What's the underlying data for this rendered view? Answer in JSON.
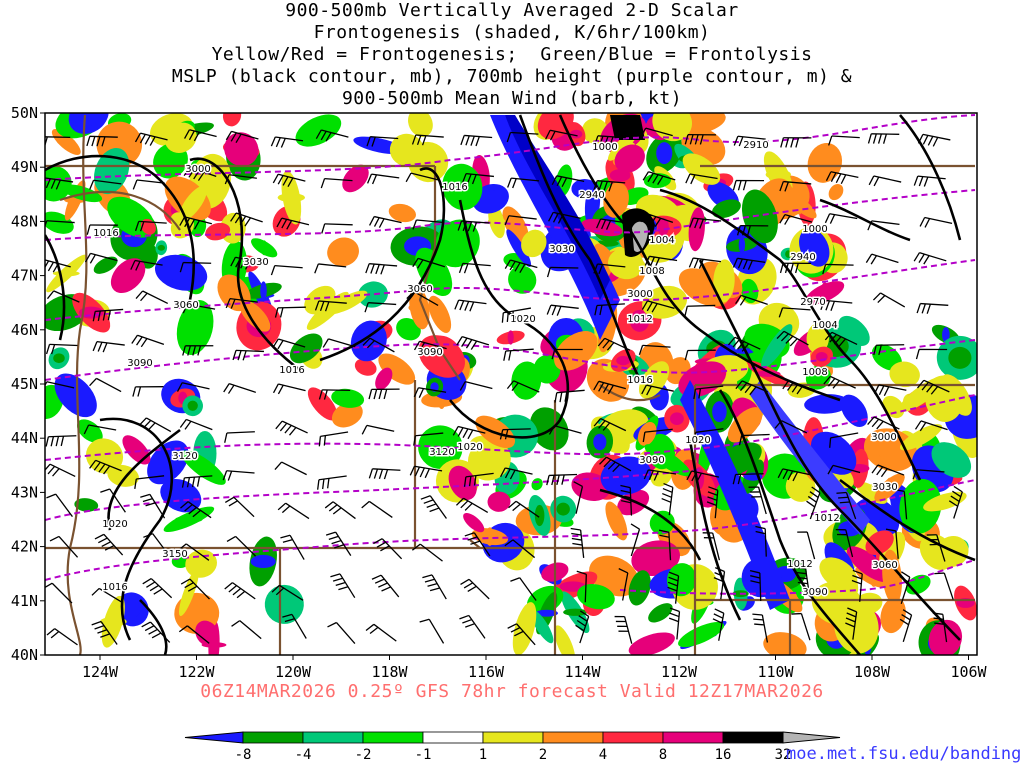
{
  "title": {
    "lines": [
      "900-500mb Vertically Averaged 2-D Scalar",
      "Frontogenesis (shaded, K/6hr/100km)",
      "Yellow/Red = Frontogenesis;  Green/Blue = Frontolysis",
      "MSLP (black contour, mb), 700mb height (purple contour, m) &",
      "900-500mb Mean Wind (barb, kt)"
    ]
  },
  "axes": {
    "lat_labels": [
      "50N",
      "49N",
      "48N",
      "47N",
      "46N",
      "45N",
      "44N",
      "43N",
      "42N",
      "41N",
      "40N"
    ],
    "lon_labels": [
      "124W",
      "122W",
      "120W",
      "118W",
      "116W",
      "114W",
      "112W",
      "110W",
      "108W",
      "106W"
    ]
  },
  "isobar_labels": [
    "1000",
    "1016",
    "1016",
    "1004",
    "1008",
    "1000",
    "1012",
    "1004",
    "1020",
    "1016",
    "1016",
    "1008",
    "1020",
    "1012",
    "1020",
    "1012",
    "1016",
    "1020"
  ],
  "height_labels": [
    "3000",
    "2910",
    "3030",
    "2940",
    "2940",
    "2970",
    "3000",
    "3060",
    "3060",
    "3030",
    "3090",
    "3090",
    "3000",
    "3120",
    "3120",
    "3090",
    "3030",
    "3150",
    "3060",
    "3090"
  ],
  "colorbar": {
    "labels": [
      "-8",
      "-4",
      "-2",
      "-1",
      "1",
      "2",
      "4",
      "8",
      "16",
      "32"
    ],
    "colors": [
      "#1a1aff",
      "#00a000",
      "#00c878",
      "#00e000",
      "#ffffff",
      "#e6e61e",
      "#ff8c1e",
      "#ff2840",
      "#e6007a",
      "#000000",
      "#b4b4b4"
    ]
  },
  "footer": "06Z14MAR2026 0.25º GFS 78hr forecast Valid 12Z17MAR2026",
  "credit": "moe.met.fsu.edu/banding"
}
